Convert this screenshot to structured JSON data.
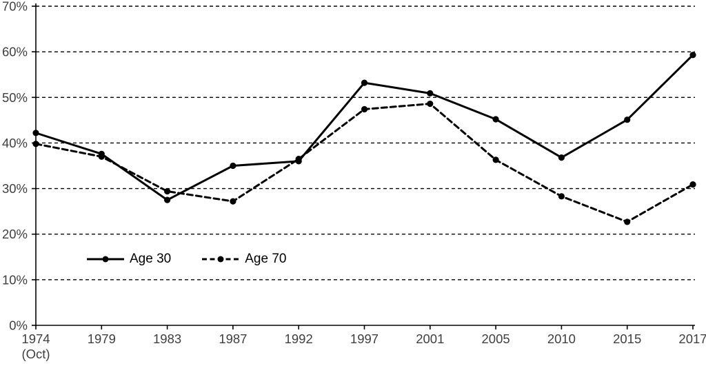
{
  "chart_data": {
    "type": "line",
    "title": "",
    "xlabel": "",
    "ylabel": "",
    "categories": [
      "1974\n(Oct)",
      "1979",
      "1983",
      "1987",
      "1992",
      "1997",
      "2001",
      "2005",
      "2010",
      "2015",
      "2017"
    ],
    "series": [
      {
        "name": "Age 30",
        "line_style": "solid",
        "marker": "circle",
        "values": [
          42.2,
          37.6,
          27.5,
          35.0,
          36.0,
          53.2,
          50.9,
          45.2,
          36.8,
          45.1,
          59.3
        ]
      },
      {
        "name": "Age 70",
        "line_style": "dashed",
        "marker": "circle",
        "values": [
          39.8,
          37.0,
          29.4,
          27.2,
          36.5,
          47.4,
          48.6,
          36.3,
          28.3,
          22.7,
          30.9
        ]
      }
    ],
    "ylim": [
      0,
      70
    ],
    "y_ticks": [
      0,
      10,
      20,
      30,
      40,
      50,
      60,
      70
    ],
    "y_tick_labels": [
      "0%",
      "10%",
      "20%",
      "30%",
      "40%",
      "50%",
      "60%",
      "70%"
    ],
    "grid": "horizontal",
    "gridline_style": "dashed",
    "legend_position": "inside-bottom-left",
    "colors": {
      "series": "#000000",
      "gridline": "#000000",
      "axis": "#000000",
      "tick_label": "#3f3f3f",
      "legend_text": "#000000",
      "background": "#ffffff"
    }
  }
}
